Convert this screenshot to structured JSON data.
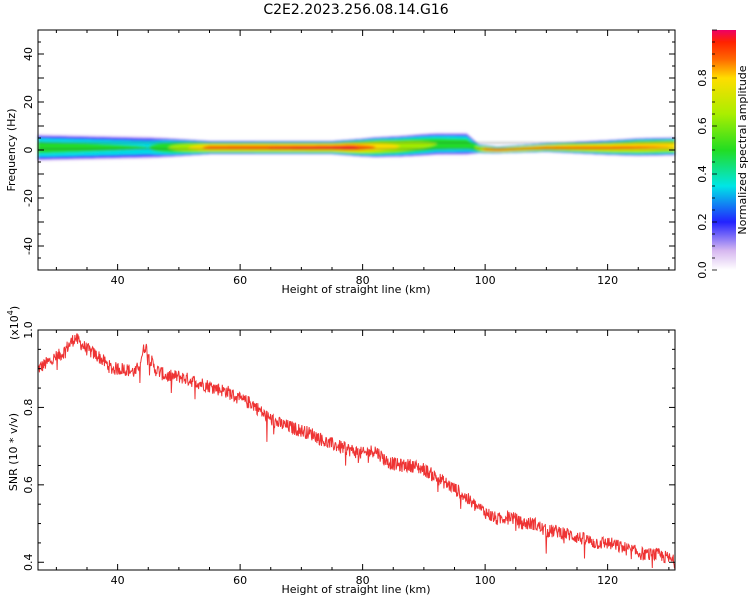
{
  "title": "C2E2.2023.256.08.14.G16",
  "chart_data": [
    {
      "type": "heatmap",
      "xlabel": "Height of straight line (km)",
      "ylabel": "Frequency (Hz)",
      "xlim": [
        27,
        131
      ],
      "ylim": [
        -50,
        50
      ],
      "x_ticks": [
        40,
        60,
        80,
        100,
        120
      ],
      "y_ticks": [
        -40,
        -20,
        0,
        20,
        40
      ],
      "colorbar": {
        "label": "Normalized spectral amplitude",
        "range": [
          0,
          1
        ],
        "ticks": [
          0.0,
          0.2,
          0.4,
          0.6,
          0.8
        ],
        "tick_labels": [
          "0.0",
          "0.2",
          "0.4",
          "0.6",
          "0.8"
        ]
      },
      "band": {
        "center_hz": [
          [
            27,
            1
          ],
          [
            40,
            1
          ],
          [
            60,
            1
          ],
          [
            80,
            1
          ],
          [
            86,
            1.5
          ],
          [
            92,
            2.5
          ],
          [
            97,
            2.5
          ],
          [
            99,
            0.5
          ],
          [
            102,
            0
          ],
          [
            110,
            1
          ],
          [
            120,
            1
          ],
          [
            131,
            1.5
          ]
        ],
        "halfwidth_hz": [
          [
            27,
            6
          ],
          [
            45,
            5
          ],
          [
            55,
            3
          ],
          [
            75,
            3
          ],
          [
            82,
            4.5
          ],
          [
            90,
            5
          ],
          [
            97,
            5
          ],
          [
            99,
            2
          ],
          [
            102,
            1.5
          ],
          [
            110,
            2
          ],
          [
            125,
            4
          ],
          [
            131,
            4
          ]
        ],
        "peak": [
          [
            27,
            0.6
          ],
          [
            45,
            0.5
          ],
          [
            55,
            0.95
          ],
          [
            78,
            1.0
          ],
          [
            86,
            0.8
          ],
          [
            92,
            0.65
          ],
          [
            98,
            0.6
          ],
          [
            100,
            0.95
          ],
          [
            130,
            0.9
          ]
        ]
      }
    },
    {
      "type": "line",
      "xlabel": "Height of straight line (km)",
      "ylabel": "SNR (10 * v/v)",
      "y_multiplier_label": "(x10",
      "y_multiplier_exp": "4",
      "xlim": [
        27,
        131
      ],
      "ylim": [
        0.38,
        1.0
      ],
      "x_ticks": [
        40,
        60,
        80,
        100,
        120
      ],
      "y_ticks": [
        0.4,
        0.6,
        0.8,
        1.0
      ],
      "y_tick_labels": [
        "0.4",
        "0.6",
        "0.8",
        "1.0"
      ],
      "series": [
        {
          "color": "#ee3333",
          "x": [
            27,
            29,
            31,
            33,
            35,
            37,
            39,
            41,
            43,
            44.5,
            46,
            48,
            50,
            52,
            54,
            56,
            58,
            60,
            62,
            64,
            66,
            68,
            70,
            72,
            74,
            76,
            78,
            80,
            82,
            84,
            86,
            88,
            90,
            92,
            94,
            96,
            98,
            100,
            102,
            104,
            106,
            108,
            110,
            112,
            114,
            116,
            118,
            120,
            122,
            124,
            126,
            128,
            130,
            131
          ],
          "y": [
            0.9,
            0.92,
            0.94,
            0.98,
            0.95,
            0.93,
            0.9,
            0.9,
            0.89,
            0.96,
            0.9,
            0.88,
            0.88,
            0.87,
            0.86,
            0.85,
            0.84,
            0.82,
            0.81,
            0.78,
            0.76,
            0.75,
            0.74,
            0.73,
            0.71,
            0.7,
            0.69,
            0.68,
            0.69,
            0.66,
            0.65,
            0.65,
            0.64,
            0.62,
            0.6,
            0.58,
            0.55,
            0.53,
            0.51,
            0.52,
            0.5,
            0.5,
            0.48,
            0.48,
            0.47,
            0.46,
            0.45,
            0.45,
            0.44,
            0.43,
            0.42,
            0.42,
            0.41,
            0.4
          ]
        }
      ]
    }
  ]
}
